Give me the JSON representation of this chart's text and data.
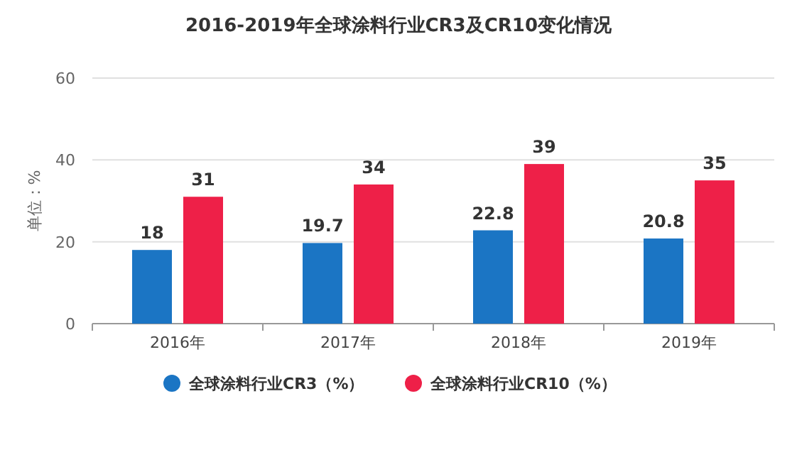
{
  "chart_data": {
    "type": "bar",
    "title": "2016-2019年全球涂料行业CR3及CR10变化情况",
    "ylabel": "单位：%",
    "categories": [
      "2016年",
      "2017年",
      "2018年",
      "2019年"
    ],
    "series": [
      {
        "name": "全球涂料行业CR3（%）",
        "color": "#1b75c4",
        "values": [
          18,
          19.7,
          22.8,
          20.8
        ]
      },
      {
        "name": "全球涂料行业CR10（%）",
        "color": "#ee2048",
        "values": [
          31,
          34,
          39,
          35
        ]
      }
    ],
    "ylim": [
      0,
      60
    ],
    "yticks": [
      0,
      20,
      40,
      60
    ],
    "grid": "y",
    "legend": "bottom",
    "data_labels": true
  }
}
